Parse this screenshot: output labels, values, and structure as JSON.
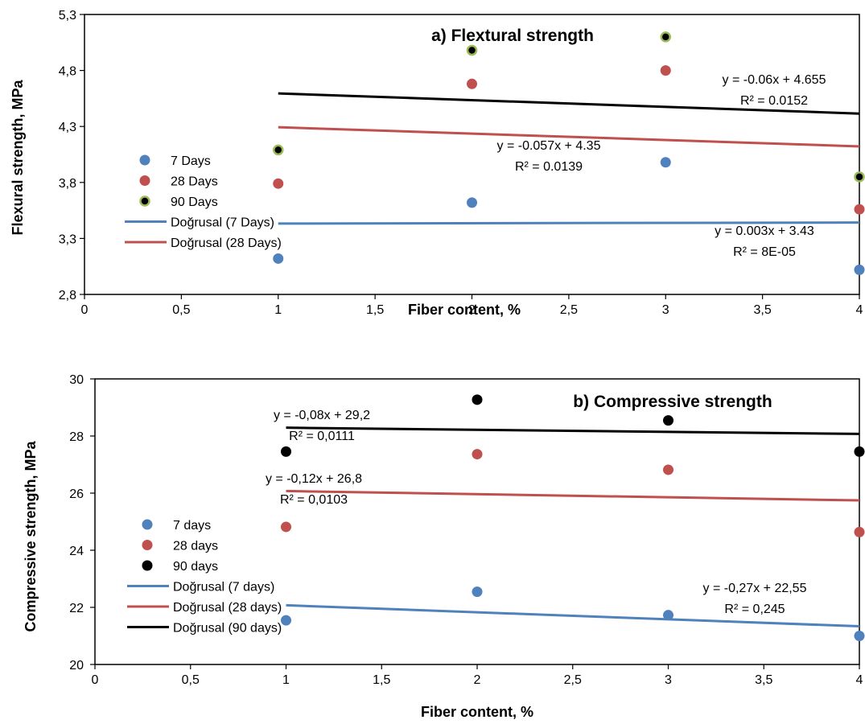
{
  "chart_data": [
    {
      "type": "scatter",
      "title": "a) Flextural strength",
      "xlabel": "Fiber content, %",
      "ylabel": "Flexural strength, MPa",
      "xlim": [
        0,
        4
      ],
      "ylim": [
        2.8,
        5.3
      ],
      "x_ticks": [
        "0",
        "0,5",
        "1",
        "1,5",
        "2",
        "2,5",
        "3",
        "3,5",
        "4"
      ],
      "y_ticks": [
        "2,8",
        "3,3",
        "3,8",
        "4,3",
        "4,8",
        "5,3"
      ],
      "grid": false,
      "legend_position": "left",
      "series": [
        {
          "name": "7 Days",
          "color": "#4f81bd",
          "x": [
            1,
            2,
            3,
            4
          ],
          "y": [
            3.12,
            3.62,
            3.98,
            3.02
          ]
        },
        {
          "name": "28 Days",
          "color": "#c0504d",
          "x": [
            1,
            2,
            3,
            4
          ],
          "y": [
            3.79,
            4.68,
            4.8,
            3.56
          ]
        },
        {
          "name": "90 Days",
          "color": "#000000",
          "outline": "#9bbb59",
          "x": [
            1,
            2,
            3,
            4
          ],
          "y": [
            4.09,
            4.98,
            5.1,
            3.85
          ]
        }
      ],
      "trendlines": [
        {
          "name": "Doğrusal (7 Days)",
          "color": "#4f81bd",
          "slope": 0.003,
          "intercept": 3.43,
          "x_range": [
            1,
            4
          ],
          "in_legend": true
        },
        {
          "name": "Doğrusal (28 Days)",
          "color": "#c0504d",
          "slope": -0.057,
          "intercept": 4.35,
          "x_range": [
            1,
            4
          ],
          "in_legend": true
        },
        {
          "name": "",
          "color": "#000000",
          "slope": -0.06,
          "intercept": 4.655,
          "x_range": [
            1,
            4
          ],
          "in_legend": false
        }
      ],
      "annotations": [
        {
          "lines": [
            "y = -0.06x + 4.655",
            "R² = 0.0152"
          ]
        },
        {
          "lines": [
            "y = -0.057x + 4.35",
            "R² = 0.0139"
          ]
        },
        {
          "lines": [
            "y = 0.003x + 3.43",
            "R² = 8E-05"
          ]
        }
      ]
    },
    {
      "type": "scatter",
      "title": "b) Compressive strength",
      "xlabel": "Fiber content, %",
      "ylabel": "Compressive strength, MPa",
      "xlim": [
        0,
        4
      ],
      "ylim": [
        20,
        31
      ],
      "x_ticks": [
        "0",
        "0,5",
        "1",
        "1,5",
        "2",
        "2,5",
        "3",
        "3,5",
        "4"
      ],
      "y_ticks": [
        "20",
        "22",
        "24",
        "26",
        "28",
        "30"
      ],
      "grid": false,
      "legend_position": "left",
      "series": [
        {
          "name": "7 days",
          "color": "#4f81bd",
          "x": [
            1,
            2,
            3,
            4
          ],
          "y": [
            21.7,
            22.8,
            21.9,
            21.1
          ]
        },
        {
          "name": "28 days",
          "color": "#c0504d",
          "x": [
            1,
            2,
            3,
            4
          ],
          "y": [
            25.3,
            28.1,
            27.5,
            25.1
          ]
        },
        {
          "name": "90 days",
          "color": "#000000",
          "x": [
            1,
            2,
            3,
            4
          ],
          "y": [
            28.2,
            30.2,
            29.4,
            28.2
          ]
        }
      ],
      "trendlines": [
        {
          "name": "Doğrusal (7 days)",
          "color": "#4f81bd",
          "slope": -0.27,
          "intercept": 22.55,
          "x_range": [
            1,
            4
          ],
          "in_legend": true
        },
        {
          "name": "Doğrusal (28 days)",
          "color": "#c0504d",
          "slope": -0.12,
          "intercept": 26.8,
          "x_range": [
            1,
            4
          ],
          "in_legend": true
        },
        {
          "name": "Doğrusal (90 days)",
          "color": "#000000",
          "slope": -0.08,
          "intercept": 29.2,
          "x_range": [
            1,
            4
          ],
          "in_legend": true
        }
      ],
      "annotations": [
        {
          "lines": [
            "y = -0,08x + 29,2",
            "R² = 0,0111"
          ]
        },
        {
          "lines": [
            "y = -0,12x + 26,8",
            "R² = 0,0103"
          ]
        },
        {
          "lines": [
            "y = -0,27x + 22,55",
            "R² = 0,245"
          ]
        }
      ]
    }
  ]
}
